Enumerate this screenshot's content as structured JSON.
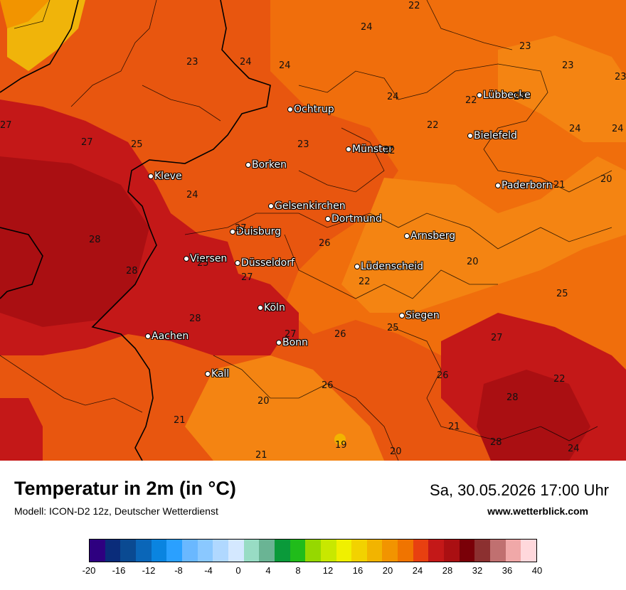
{
  "header": {
    "title": "Temperatur in 2m (in °C)",
    "model": "Modell: ICON-D2 12z, Deutscher Wetterdienst",
    "datetime": "Sa, 30.05.2026 17:00 Uhr",
    "website": "www.wetterblick.com"
  },
  "cities": [
    {
      "name": "Ochtrup",
      "temp": "",
      "id": "ochtrup"
    },
    {
      "name": "Lübbecke",
      "id": "luebbecke"
    },
    {
      "name": "Bielefeld",
      "id": "bielefeld"
    },
    {
      "name": "Münster",
      "id": "muenster"
    },
    {
      "name": "Borken",
      "id": "borken"
    },
    {
      "name": "Kleve",
      "id": "kleve"
    },
    {
      "name": "Paderborn",
      "id": "paderborn"
    },
    {
      "name": "Gelsenkirchen",
      "id": "gelsenkirchen"
    },
    {
      "name": "Dortmund",
      "id": "dortmund"
    },
    {
      "name": "Duisburg",
      "id": "duisburg"
    },
    {
      "name": "Arnsberg",
      "id": "arnsberg"
    },
    {
      "name": "Viersen",
      "id": "viersen"
    },
    {
      "name": "Düsseldorf",
      "id": "duesseldorf"
    },
    {
      "name": "Lüdenscheid",
      "id": "luedenscheid"
    },
    {
      "name": "Köln",
      "id": "koeln"
    },
    {
      "name": "Siegen",
      "id": "siegen"
    },
    {
      "name": "Aachen",
      "id": "aachen"
    },
    {
      "name": "Bonn",
      "id": "bonn"
    },
    {
      "name": "Kall",
      "id": "kall"
    }
  ],
  "temperature_values": [
    "22",
    "24",
    "23",
    "24",
    "24",
    "23",
    "23",
    "23",
    "27",
    "24",
    "22",
    "22",
    "24",
    "24",
    "27",
    "25",
    "23",
    "24",
    "21",
    "20",
    "24",
    "22",
    "26",
    "20",
    "28",
    "25",
    "28",
    "22",
    "25",
    "28",
    "27",
    "26",
    "25",
    "27",
    "27",
    "26",
    "21",
    "27",
    "22",
    "26",
    "20",
    "28",
    "21",
    "21",
    "19",
    "20",
    "28",
    "24"
  ],
  "legend": {
    "ticks": [
      "-20",
      "-16",
      "-12",
      "-8",
      "-4",
      "0",
      "4",
      "8",
      "12",
      "16",
      "20",
      "24",
      "28",
      "32",
      "36",
      "40"
    ],
    "colors": [
      "#2e0080",
      "#0a2c7a",
      "#0a4a92",
      "#0a66b8",
      "#0a84e0",
      "#2aa0ff",
      "#6ab8ff",
      "#8ac8ff",
      "#b0d8ff",
      "#d4e8ff",
      "#98dcc4",
      "#6ab494",
      "#0a9a3a",
      "#20bc1a",
      "#96d800",
      "#c8e800",
      "#f0f000",
      "#f2d200",
      "#f2b400",
      "#f29400",
      "#f07400",
      "#e84010",
      "#c41818",
      "#aa0f12",
      "#7a0008",
      "#8c3030",
      "#c07070",
      "#f0a8a8",
      "#ffd8dc"
    ]
  }
}
